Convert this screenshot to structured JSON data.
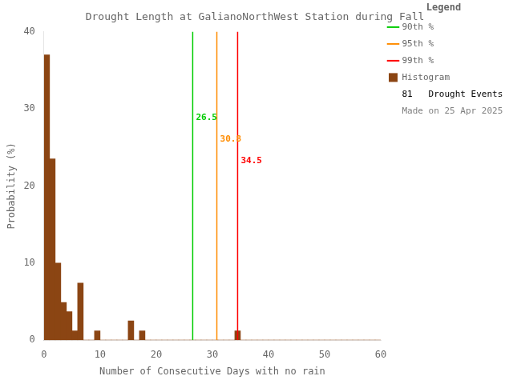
{
  "chart_data": {
    "type": "histogram",
    "title": "Drought Length at GalianoNorthWest Station during Fall",
    "xlabel": "Number of Consecutive Days with no rain",
    "ylabel": "Probability (%)",
    "name": "Histogram",
    "color": "#8B4513",
    "bins": [
      0,
      1,
      2,
      3,
      4,
      5,
      6,
      7,
      8,
      9,
      10,
      11,
      12,
      13,
      14,
      15,
      16,
      17,
      18,
      19,
      20,
      21,
      22,
      23,
      24,
      25,
      26,
      27,
      28,
      29,
      30,
      31,
      32,
      33,
      34,
      35,
      36,
      37,
      38,
      39,
      40,
      41,
      42,
      43,
      44,
      45,
      46,
      47,
      48,
      49,
      50,
      51,
      52,
      53,
      54,
      55,
      56,
      57,
      58,
      59,
      60
    ],
    "values": [
      37.0,
      23.5,
      10.0,
      4.9,
      3.7,
      1.2,
      7.4,
      0.0,
      0.0,
      1.2,
      0.0,
      0.0,
      0.0,
      0.0,
      0.0,
      2.5,
      0.0,
      1.2,
      0.0,
      0.0,
      0.0,
      0.0,
      0.0,
      0.0,
      0.0,
      0.0,
      0.0,
      0.0,
      0.0,
      0.0,
      0.0,
      0.0,
      0.0,
      0.0,
      1.2,
      0.0,
      0.0,
      0.0,
      0.0,
      0.0,
      0.0,
      0.0,
      0.0,
      0.0,
      0.0,
      0.0,
      0.0,
      0.0,
      0.0,
      0.0,
      0.0,
      0.0,
      0.0,
      0.0,
      0.0,
      0.0,
      0.0,
      0.0,
      0.0,
      0.0
    ],
    "vlines": [
      {
        "name": "90th %",
        "x": 26.5,
        "color": "#00CC00"
      },
      {
        "name": "95th %",
        "x": 30.8,
        "color": "#FF8C00"
      },
      {
        "name": "99th %",
        "x": 34.5,
        "color": "#FF0000"
      }
    ],
    "legend_title": "Legend",
    "legend_notes": [
      "81   Drought Events",
      "Made on 25 Apr 2025"
    ],
    "xlim": [
      0,
      60
    ],
    "ylim": [
      0,
      40
    ],
    "xticks": [
      0,
      10,
      20,
      30,
      40,
      50,
      60
    ],
    "yticks": [
      0,
      10,
      20,
      30,
      40
    ],
    "grid": false,
    "legend": "upper right"
  }
}
